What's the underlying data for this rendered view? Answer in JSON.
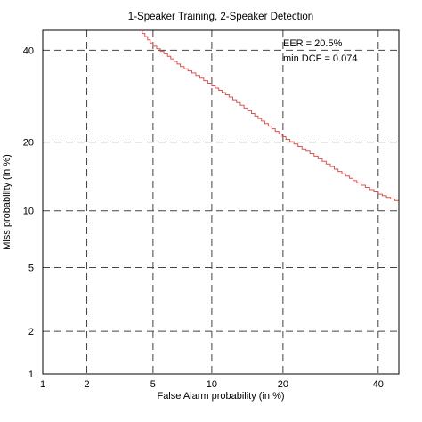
{
  "chart_data": {
    "type": "line",
    "plot_kind": "DET curve",
    "title": "1-Speaker Training, 2-Speaker Detection",
    "xlabel": "False Alarm probability (in %)",
    "ylabel": "Miss probability (in %)",
    "xscale": "normal-deviate",
    "yscale": "normal-deviate",
    "xlim": [
      1,
      45
    ],
    "ylim": [
      1,
      45
    ],
    "x_ticks": [
      1,
      2,
      5,
      10,
      20,
      40
    ],
    "y_ticks": [
      1,
      2,
      5,
      10,
      20,
      40
    ],
    "x_tick_labels": [
      "1",
      "2",
      "5",
      "10",
      "20",
      "40"
    ],
    "y_tick_labels": [
      "1",
      "2",
      "5",
      "10",
      "20",
      "40"
    ],
    "grid": "dashed",
    "annotations": [
      "EER = 20.5%",
      "min DCF = 0.074"
    ],
    "series": [
      {
        "color": "#d9534f",
        "x": [
          4.2,
          5.0,
          6.0,
          7.0,
          8.0,
          10.0,
          12.0,
          15.0,
          17.0,
          20.5,
          25.0,
          30.0,
          35.0,
          40.0,
          45.0
        ],
        "y": [
          45.0,
          41.0,
          38.5,
          36.0,
          34.5,
          31.5,
          29.0,
          25.5,
          23.5,
          20.5,
          18.0,
          15.5,
          13.5,
          12.0,
          11.0
        ]
      }
    ]
  }
}
